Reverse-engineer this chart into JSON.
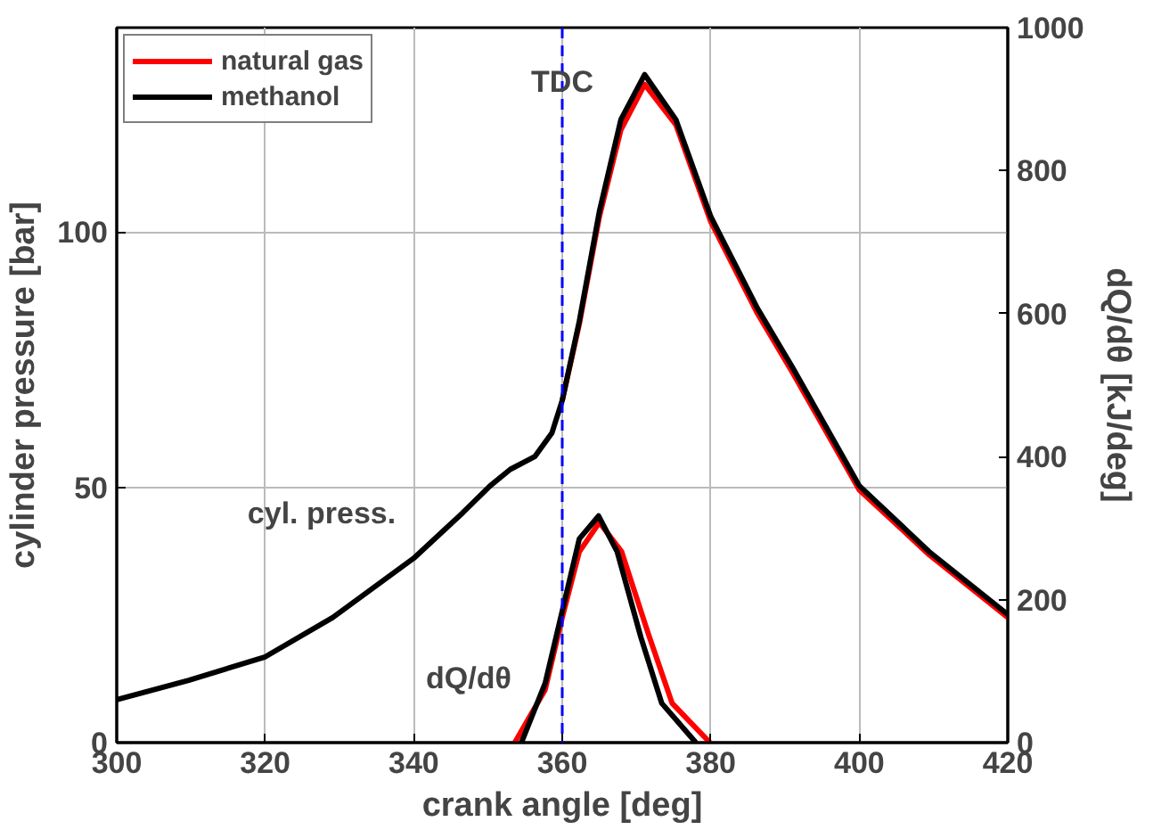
{
  "chart_data": {
    "type": "line",
    "xlabel": "crank angle [deg]",
    "ylabel": "cylinder pressure [bar]",
    "y2label": "dQ/dθ [kJ/deg]",
    "xlim": [
      300,
      420
    ],
    "xticks": [
      300,
      320,
      340,
      360,
      380,
      400,
      420
    ],
    "ylim": [
      0,
      140
    ],
    "yticks": [
      0,
      50,
      100
    ],
    "y2lim": [
      0,
      1000
    ],
    "y2ticks": [
      0,
      200,
      400,
      600,
      800,
      1000
    ],
    "grid": true,
    "legend": "top left",
    "line_style": "solid",
    "series": [
      {
        "name": "natural gas",
        "color": "#ff0000",
        "x": [
          360,
          362.3,
          365,
          367.9,
          371.1,
          375.3,
          380,
          386.3,
          391,
          400,
          409.4,
          420
        ],
        "values": [
          67,
          82,
          103,
          120,
          128.9,
          121,
          102,
          84,
          72.5,
          49.5,
          36.8,
          24.5
        ]
      },
      {
        "name": "methanol",
        "color": "#000000",
        "x": [
          300,
          309.7,
          320,
          329.1,
          340,
          346.6,
          350.3,
          353,
          356.3,
          358.6,
          360,
          362.3,
          365,
          367.9,
          371.1,
          375.3,
          380,
          386.3,
          391,
          400,
          409.4,
          420
        ],
        "values": [
          8.4,
          12.2,
          16.8,
          24.5,
          36.1,
          45,
          50.3,
          53.5,
          56,
          60.6,
          67,
          82.5,
          104,
          122,
          130.8,
          122,
          103,
          85,
          73.5,
          50.3,
          37.4,
          25.1
        ]
      },
      {
        "color": "#ff0000",
        "axis": "y2",
        "x": [
          353.6,
          357.7,
          360,
          362.3,
          365,
          368,
          371.6,
          374.8,
          379.9
        ],
        "values": [
          0,
          74,
          175,
          267,
          308,
          267,
          152,
          55,
          0
        ]
      },
      {
        "color": "#000000",
        "axis": "y2",
        "x": [
          354.5,
          357.7,
          360,
          362.3,
          364.9,
          367.4,
          370.6,
          373.4,
          378
        ],
        "values": [
          0,
          83,
          184,
          285,
          317,
          267,
          147,
          55,
          0
        ]
      }
    ],
    "ref_lines": [
      {
        "axis": "x",
        "value": 360,
        "label": "TDC",
        "color": "#0000ff",
        "line_style": "dashed"
      }
    ],
    "annotations": [
      "cyl. press.",
      "dQ/dθ"
    ]
  }
}
